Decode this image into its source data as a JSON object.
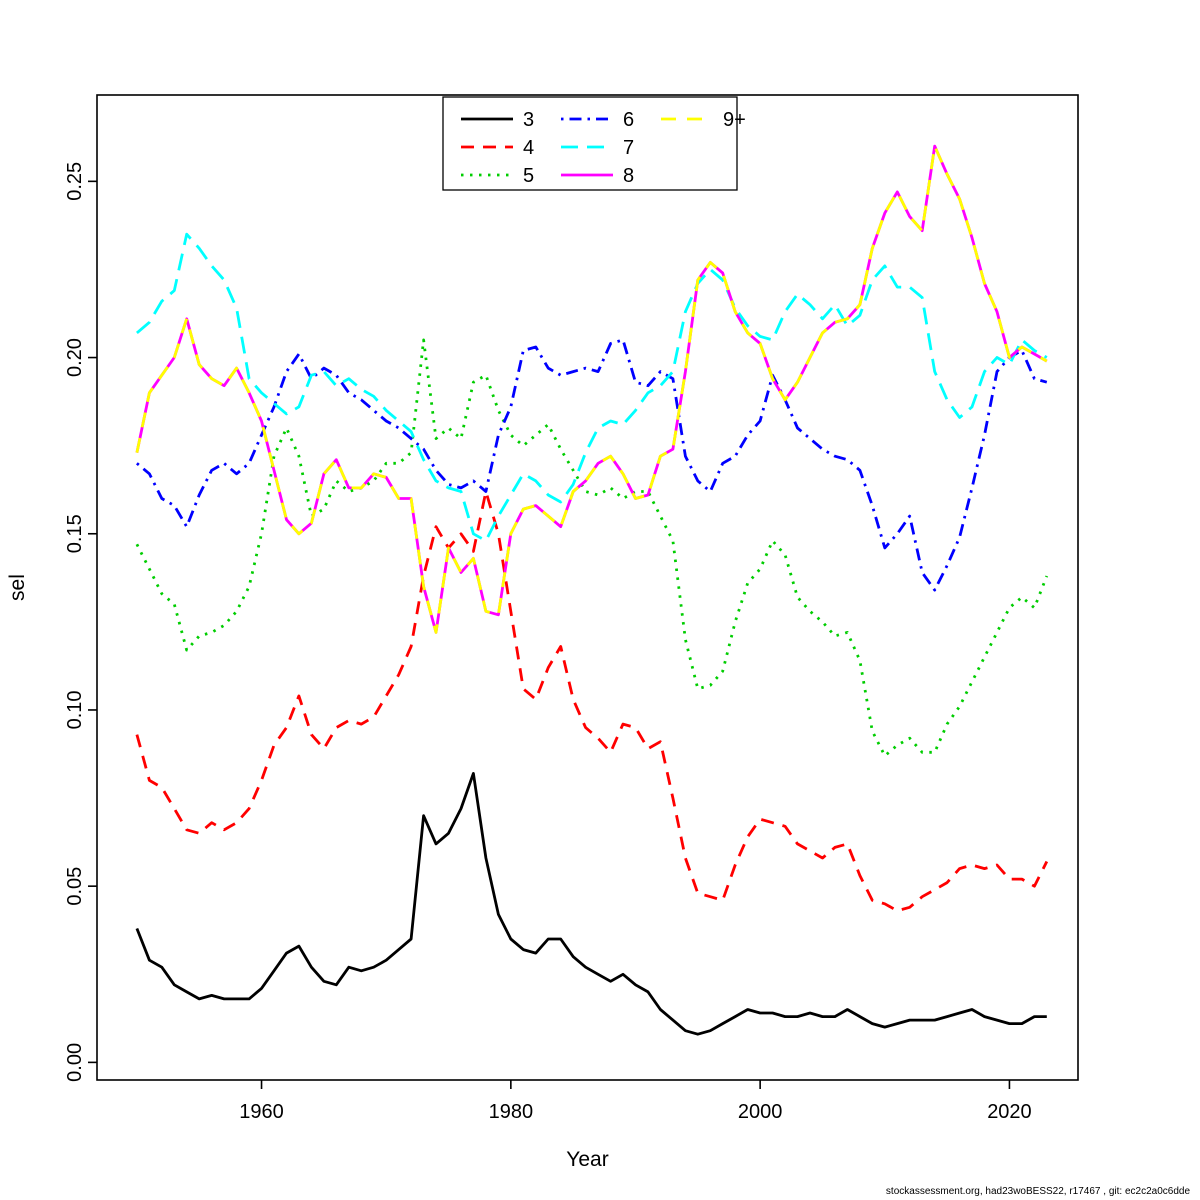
{
  "footer": {
    "text": "stockassessment.org, had23woBESS22, r17467 , git: ec2c2a0c6dde"
  },
  "chart_data": {
    "type": "line",
    "title": "",
    "xlabel": "Year",
    "ylabel": "sel",
    "x_start": 1950,
    "x_end": 2023,
    "xticks": [
      1960,
      1980,
      2000,
      2020
    ],
    "yticks": [
      "0.00",
      "0.05",
      "0.10",
      "0.15",
      "0.20",
      "0.25"
    ],
    "xlim": [
      1946.8,
      2025.5
    ],
    "ylim": [
      -0.005,
      0.2745
    ],
    "grid": false,
    "legend_position": "top-center",
    "series": [
      {
        "name": "3",
        "color": "#000000",
        "dash": "",
        "values": [
          0.038,
          0.029,
          0.027,
          0.022,
          0.02,
          0.018,
          0.019,
          0.018,
          0.018,
          0.018,
          0.021,
          0.026,
          0.031,
          0.033,
          0.027,
          0.023,
          0.022,
          0.027,
          0.026,
          0.027,
          0.029,
          0.032,
          0.035,
          0.07,
          0.062,
          0.065,
          0.072,
          0.082,
          0.058,
          0.042,
          0.035,
          0.032,
          0.031,
          0.035,
          0.035,
          0.03,
          0.027,
          0.025,
          0.023,
          0.025,
          0.022,
          0.02,
          0.015,
          0.012,
          0.009,
          0.008,
          0.009,
          0.011,
          0.013,
          0.015,
          0.014,
          0.014,
          0.013,
          0.013,
          0.014,
          0.013,
          0.013,
          0.015,
          0.013,
          0.011,
          0.01,
          0.011,
          0.012,
          0.012,
          0.012,
          0.013,
          0.014,
          0.015,
          0.013,
          0.012,
          0.011,
          0.011,
          0.013,
          0.013
        ]
      },
      {
        "name": "4",
        "color": "#FF0000",
        "dash": "13,9",
        "values": [
          0.093,
          0.08,
          0.078,
          0.072,
          0.066,
          0.065,
          0.068,
          0.066,
          0.068,
          0.072,
          0.08,
          0.09,
          0.095,
          0.104,
          0.093,
          0.089,
          0.095,
          0.097,
          0.096,
          0.098,
          0.104,
          0.11,
          0.118,
          0.138,
          0.152,
          0.146,
          0.15,
          0.145,
          0.162,
          0.15,
          0.128,
          0.106,
          0.103,
          0.112,
          0.118,
          0.103,
          0.095,
          0.092,
          0.088,
          0.096,
          0.095,
          0.089,
          0.091,
          0.075,
          0.058,
          0.048,
          0.047,
          0.046,
          0.056,
          0.064,
          0.069,
          0.068,
          0.067,
          0.062,
          0.06,
          0.058,
          0.061,
          0.062,
          0.053,
          0.046,
          0.045,
          0.043,
          0.044,
          0.047,
          0.049,
          0.051,
          0.055,
          0.056,
          0.055,
          0.056,
          0.052,
          0.052,
          0.05,
          0.057
        ]
      },
      {
        "name": "5",
        "color": "#00CD00",
        "dash": "2.5,6.5",
        "values": [
          0.147,
          0.14,
          0.133,
          0.13,
          0.117,
          0.121,
          0.122,
          0.124,
          0.128,
          0.135,
          0.15,
          0.172,
          0.18,
          0.172,
          0.155,
          0.157,
          0.165,
          0.162,
          0.163,
          0.165,
          0.17,
          0.17,
          0.173,
          0.205,
          0.177,
          0.18,
          0.177,
          0.193,
          0.195,
          0.185,
          0.178,
          0.175,
          0.178,
          0.181,
          0.174,
          0.168,
          0.162,
          0.161,
          0.163,
          0.16,
          0.162,
          0.162,
          0.155,
          0.148,
          0.12,
          0.106,
          0.107,
          0.111,
          0.125,
          0.136,
          0.14,
          0.148,
          0.144,
          0.132,
          0.128,
          0.125,
          0.121,
          0.122,
          0.114,
          0.094,
          0.087,
          0.09,
          0.092,
          0.088,
          0.088,
          0.096,
          0.101,
          0.108,
          0.115,
          0.122,
          0.129,
          0.132,
          0.129,
          0.138
        ]
      },
      {
        "name": "6",
        "color": "#0000FF",
        "dash": "2.5,6,12,6",
        "values": [
          0.17,
          0.167,
          0.16,
          0.158,
          0.152,
          0.161,
          0.168,
          0.17,
          0.167,
          0.17,
          0.178,
          0.186,
          0.196,
          0.201,
          0.194,
          0.197,
          0.195,
          0.19,
          0.188,
          0.185,
          0.182,
          0.18,
          0.177,
          0.174,
          0.168,
          0.164,
          0.163,
          0.165,
          0.162,
          0.178,
          0.186,
          0.202,
          0.203,
          0.197,
          0.195,
          0.196,
          0.197,
          0.196,
          0.204,
          0.205,
          0.193,
          0.192,
          0.196,
          0.194,
          0.172,
          0.165,
          0.162,
          0.17,
          0.172,
          0.178,
          0.182,
          0.195,
          0.188,
          0.18,
          0.177,
          0.174,
          0.172,
          0.171,
          0.168,
          0.158,
          0.146,
          0.15,
          0.155,
          0.139,
          0.134,
          0.141,
          0.149,
          0.163,
          0.178,
          0.196,
          0.2,
          0.202,
          0.194,
          0.193
        ]
      },
      {
        "name": "7",
        "color": "#00FFFF",
        "dash": "17,9",
        "values": [
          0.207,
          0.21,
          0.216,
          0.219,
          0.235,
          0.231,
          0.226,
          0.222,
          0.214,
          0.194,
          0.19,
          0.187,
          0.184,
          0.186,
          0.195,
          0.196,
          0.192,
          0.194,
          0.191,
          0.189,
          0.185,
          0.182,
          0.179,
          0.171,
          0.165,
          0.163,
          0.162,
          0.15,
          0.148,
          0.155,
          0.161,
          0.167,
          0.165,
          0.161,
          0.159,
          0.164,
          0.173,
          0.18,
          0.182,
          0.181,
          0.185,
          0.19,
          0.192,
          0.196,
          0.213,
          0.221,
          0.225,
          0.222,
          0.214,
          0.209,
          0.206,
          0.205,
          0.213,
          0.218,
          0.215,
          0.211,
          0.215,
          0.209,
          0.212,
          0.222,
          0.226,
          0.22,
          0.22,
          0.217,
          0.196,
          0.188,
          0.183,
          0.186,
          0.196,
          0.2,
          0.198,
          0.205,
          0.202,
          0.2
        ]
      },
      {
        "name": "8",
        "color": "#FF00FF",
        "dash": "",
        "values": [
          0.173,
          0.19,
          0.195,
          0.2,
          0.211,
          0.198,
          0.194,
          0.192,
          0.197,
          0.19,
          0.182,
          0.168,
          0.154,
          0.15,
          0.153,
          0.167,
          0.171,
          0.163,
          0.163,
          0.167,
          0.166,
          0.16,
          0.16,
          0.135,
          0.122,
          0.146,
          0.139,
          0.143,
          0.128,
          0.127,
          0.15,
          0.157,
          0.158,
          0.155,
          0.152,
          0.162,
          0.165,
          0.17,
          0.172,
          0.167,
          0.16,
          0.161,
          0.172,
          0.174,
          0.196,
          0.222,
          0.227,
          0.224,
          0.213,
          0.207,
          0.204,
          0.194,
          0.188,
          0.193,
          0.2,
          0.207,
          0.21,
          0.211,
          0.215,
          0.231,
          0.241,
          0.247,
          0.24,
          0.236,
          0.26,
          0.252,
          0.245,
          0.234,
          0.221,
          0.213,
          0.2,
          0.203,
          0.201,
          0.199
        ]
      },
      {
        "name": "9+",
        "color": "#FFFF00",
        "dash": "15,11",
        "values": [
          0.173,
          0.19,
          0.195,
          0.2,
          0.211,
          0.198,
          0.194,
          0.192,
          0.197,
          0.19,
          0.182,
          0.168,
          0.154,
          0.15,
          0.153,
          0.167,
          0.171,
          0.163,
          0.163,
          0.167,
          0.166,
          0.16,
          0.16,
          0.135,
          0.122,
          0.146,
          0.139,
          0.143,
          0.128,
          0.127,
          0.15,
          0.157,
          0.158,
          0.155,
          0.152,
          0.162,
          0.165,
          0.17,
          0.172,
          0.167,
          0.16,
          0.161,
          0.172,
          0.174,
          0.196,
          0.222,
          0.227,
          0.224,
          0.213,
          0.207,
          0.204,
          0.194,
          0.188,
          0.193,
          0.2,
          0.207,
          0.21,
          0.211,
          0.215,
          0.231,
          0.241,
          0.247,
          0.24,
          0.236,
          0.26,
          0.252,
          0.245,
          0.234,
          0.221,
          0.213,
          0.2,
          0.203,
          0.201,
          0.199
        ]
      }
    ]
  }
}
